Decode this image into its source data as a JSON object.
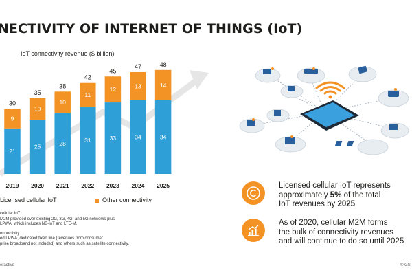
{
  "page": {
    "title": "NECTIVITY OF INTERNET OF THINGS (IoT)",
    "footer_left": "eractive",
    "footer_right": "© GS"
  },
  "chart_data": {
    "type": "bar",
    "stacked": true,
    "title": "IoT connectivity revenue ($ billion)",
    "categories": [
      "2019",
      "2020",
      "2021",
      "2022",
      "2023",
      "2024",
      "2025"
    ],
    "series": [
      {
        "name": "Licensed cellular IoT",
        "values": [
          21,
          25,
          28,
          31,
          33,
          34,
          34
        ],
        "color": "#2f9fd8"
      },
      {
        "name": "Other connectivity",
        "values": [
          9,
          10,
          10,
          11,
          12,
          13,
          14
        ],
        "color": "#f39325"
      }
    ],
    "totals": [
      30,
      35,
      38,
      42,
      45,
      47,
      48
    ],
    "ylim": [
      0,
      52
    ],
    "grid": false,
    "legend_position": "bottom",
    "background_arrow": true
  },
  "notes": {
    "cellular_heading": "cellular IoT :",
    "cellular_line1": "M2M provided over existing 2G, 3G, 4G, and 5G networks plus",
    "cellular_line2": "LPWA, which includes NB-IoT and LTE-M.",
    "other_heading": "onnectivity :",
    "other_line1": "ed LPWA, dedicated fixed line (revenues from consumer",
    "other_line2": "prise broadband not included) and others such as satellite connectivity."
  },
  "facts": {
    "fact1": {
      "icon": "copyright-icon",
      "line1": "Licensed cellular IoT represents",
      "line2_pre": "approximately ",
      "line2_bold": "5%",
      "line2_post": " of the total",
      "line3_pre": "IoT revenues by ",
      "line3_bold": "2025",
      "line3_post": "."
    },
    "fact2": {
      "icon": "bar-chart-growth-icon",
      "line1": "As of 2020, cellular M2M forms",
      "line2": "the bulk of connectivity revenues",
      "line3": "and will continue to do so until 2025"
    }
  },
  "illustration": {
    "icon": "iot-devices-network-icon",
    "center_icon": "tablet-wifi-icon"
  }
}
